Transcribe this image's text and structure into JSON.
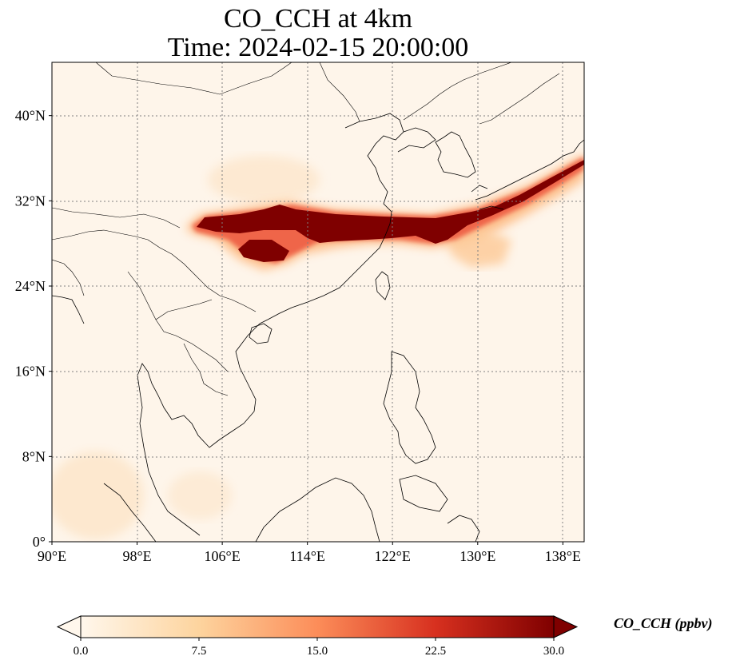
{
  "title": {
    "line1": "CO_CCH at 4km",
    "line2": "Time: 2024-02-15 20:00:00"
  },
  "axes": {
    "lon_ticks": [
      "90°E",
      "98°E",
      "106°E",
      "114°E",
      "122°E",
      "130°E",
      "138°E"
    ],
    "lat_ticks": [
      "0°",
      "8°N",
      "16°N",
      "24°N",
      "32°N",
      "40°N"
    ],
    "lon_values": [
      90,
      98,
      106,
      114,
      122,
      130,
      138
    ],
    "lat_values": [
      0,
      8,
      16,
      24,
      32,
      40
    ],
    "lon_range": [
      90,
      140
    ],
    "lat_range": [
      0,
      45
    ]
  },
  "colorbar": {
    "label": "CO_CCH (ppbv)",
    "ticks": [
      "0.0",
      "7.5",
      "15.0",
      "22.5",
      "30.0"
    ],
    "tick_values": [
      0,
      7.5,
      15,
      22.5,
      30
    ],
    "range": [
      0,
      30
    ],
    "extend": "both",
    "colormap": "OrRd",
    "colors": [
      "#fff7ec",
      "#fdd49e",
      "#fc8d59",
      "#d7301f",
      "#7f0000"
    ]
  },
  "plume": {
    "description_value_max": 30,
    "color": "#7f0000"
  },
  "colors": {
    "background": "#fef5ea",
    "coastline": "#000000",
    "gridline": "#808080"
  }
}
